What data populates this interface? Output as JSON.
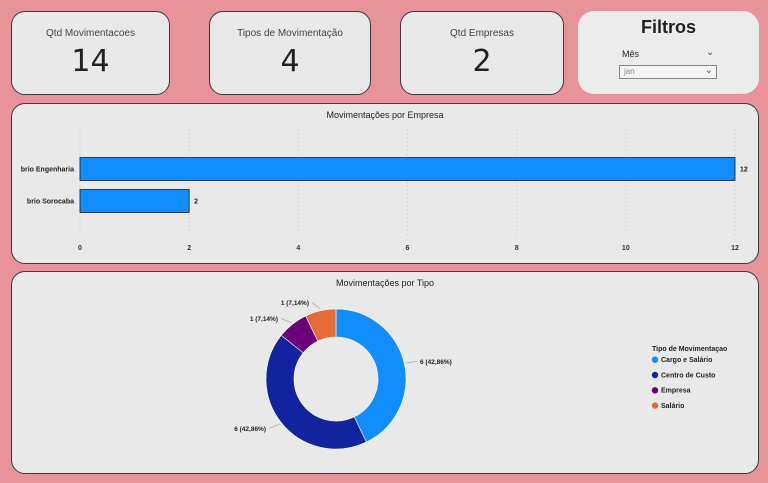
{
  "kpis": [
    {
      "label": "Qtd Movimentacoes",
      "value": "14"
    },
    {
      "label": "Tipos de Movimentação",
      "value": "4"
    },
    {
      "label": "Qtd Empresas",
      "value": "2"
    }
  ],
  "filters": {
    "title": "Filtros",
    "slicer_label": "Mês",
    "selected_value": "jan"
  },
  "colors": {
    "background": "#e8929a",
    "bar": "#118dff",
    "cargo": "#118dff",
    "centro": "#12239e",
    "empresa": "#6b007b",
    "salario": "#e66c37"
  },
  "chart_data": [
    {
      "type": "bar",
      "orientation": "horizontal",
      "title": "Movimentações por Empresa",
      "categories": [
        "brio Engenharia",
        "brio Sorocaba"
      ],
      "values": [
        12,
        2
      ],
      "data_labels": [
        "12",
        "2"
      ],
      "xlim": [
        0,
        12
      ],
      "x_ticks": [
        "0",
        "2",
        "4",
        "6",
        "8",
        "10",
        "12"
      ],
      "grid": true
    },
    {
      "type": "pie",
      "donut": true,
      "title": "Movimentações por Tipo",
      "legend_title": "Tipo de Movimentaçao",
      "legend_position": "right",
      "slices": [
        {
          "name": "Cargo e Salário",
          "value": 6,
          "label": "6 (42,86%)"
        },
        {
          "name": "Centro de Custo",
          "value": 6,
          "label": "6 (42,86%)"
        },
        {
          "name": "Empresa",
          "value": 1,
          "label": "1 (7,14%)"
        },
        {
          "name": "Salário",
          "value": 1,
          "label": "1 (7,14%)"
        }
      ]
    }
  ]
}
